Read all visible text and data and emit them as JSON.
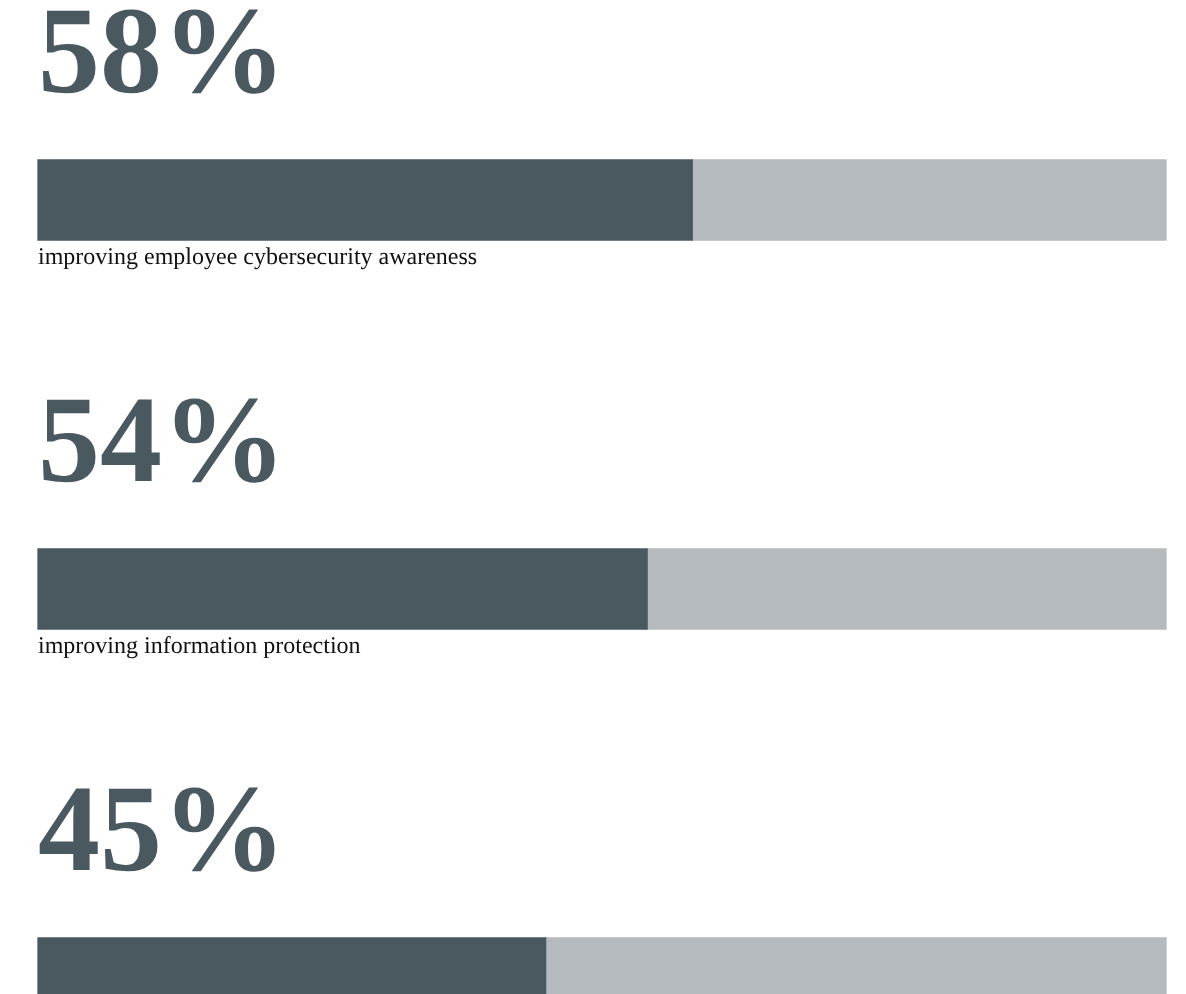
{
  "chart_data": {
    "type": "bar",
    "orientation": "horizontal",
    "stacked": true,
    "categories": [
      "improving employee cybersecurity awareness",
      "improving information protection",
      null
    ],
    "series": [
      {
        "color": "#4a5860",
        "values": [
          58,
          54,
          45
        ],
        "value_labels": [
          "58%",
          "54%",
          "45%"
        ]
      },
      {
        "color": "#b5babe",
        "values": [
          42,
          46,
          55
        ]
      }
    ],
    "xlim": [
      0,
      100
    ],
    "tick_labels": false,
    "legend": false
  }
}
